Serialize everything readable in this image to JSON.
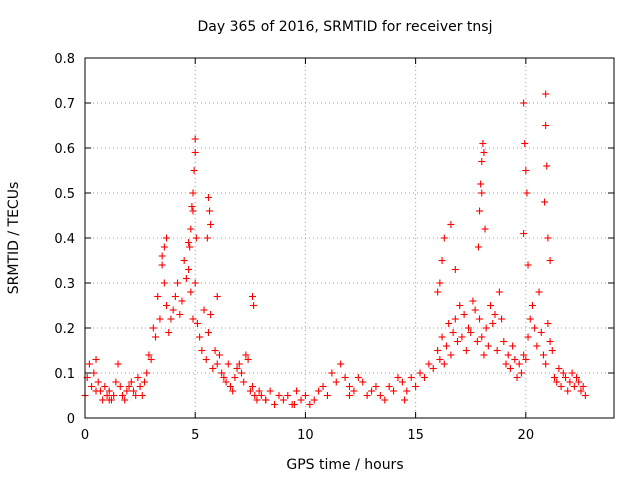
{
  "chart_data": {
    "type": "scatter",
    "title": "Day 365 of 2016, SRMTID for receiver tnsj",
    "xlabel": "GPS time / hours",
    "ylabel": "SRMTID / TECUs",
    "xlim": [
      0,
      24
    ],
    "ylim": [
      0,
      0.8
    ],
    "xticks": [
      0,
      5,
      10,
      15,
      20
    ],
    "yticks": [
      0,
      0.1,
      0.2,
      0.3,
      0.4,
      0.5,
      0.6,
      0.7,
      0.8
    ],
    "xtick_labels": [
      "0",
      "5",
      "10",
      "15",
      "20"
    ],
    "ytick_labels": [
      "0",
      "0.1",
      "0.2",
      "0.3",
      "0.4",
      "0.5",
      "0.6",
      "0.7",
      "0.8"
    ],
    "grid": true,
    "marker": "+",
    "color": "#ff0000",
    "series": [
      {
        "name": "SRMTID",
        "x": [
          0.0,
          0.1,
          0.2,
          0.3,
          0.4,
          0.5,
          0.6,
          0.7,
          0.8,
          0.9,
          1.0,
          1.1,
          1.2,
          1.3,
          1.4,
          1.5,
          1.6,
          1.7,
          1.8,
          1.9,
          2.0,
          2.1,
          2.2,
          2.3,
          2.4,
          2.5,
          2.6,
          2.7,
          2.8,
          2.9,
          3.0,
          3.1,
          3.2,
          3.3,
          3.4,
          3.5,
          3.6,
          3.7,
          3.8,
          3.9,
          4.0,
          4.1,
          4.2,
          4.3,
          4.4,
          4.5,
          4.6,
          4.7,
          4.8,
          4.9,
          5.0,
          5.1,
          5.2,
          5.3,
          5.4,
          5.5,
          5.6,
          5.7,
          5.8,
          5.9,
          6.0,
          6.1,
          6.2,
          6.3,
          6.4,
          6.5,
          6.6,
          6.7,
          6.8,
          6.9,
          7.0,
          7.1,
          7.2,
          7.3,
          7.4,
          7.5,
          7.6,
          7.7,
          7.8,
          7.9,
          8.0,
          8.2,
          8.4,
          8.6,
          8.8,
          9.0,
          9.2,
          9.4,
          9.6,
          9.8,
          10.0,
          10.2,
          10.4,
          10.6,
          10.8,
          11.0,
          11.2,
          11.4,
          11.6,
          11.8,
          12.0,
          12.2,
          12.4,
          12.6,
          12.8,
          13.0,
          13.2,
          13.4,
          13.6,
          13.8,
          14.0,
          14.2,
          14.4,
          14.6,
          14.8,
          15.0,
          15.2,
          15.4,
          15.6,
          15.8,
          16.0,
          16.1,
          16.2,
          16.3,
          16.4,
          16.5,
          16.6,
          16.7,
          16.8,
          16.9,
          17.0,
          17.1,
          17.2,
          17.3,
          17.4,
          17.5,
          17.6,
          17.7,
          17.8,
          17.9,
          18.0,
          18.1,
          18.2,
          18.3,
          18.4,
          18.5,
          18.6,
          18.7,
          18.8,
          18.9,
          19.0,
          19.1,
          19.2,
          19.3,
          19.4,
          19.5,
          19.6,
          19.7,
          19.8,
          19.9,
          20.0,
          20.1,
          20.2,
          20.3,
          20.4,
          20.5,
          20.6,
          20.7,
          20.8,
          20.9,
          21.0,
          21.1,
          21.2,
          21.3,
          21.4,
          21.5,
          21.6,
          21.7,
          21.8,
          21.9,
          22.0,
          22.1,
          22.2,
          22.3,
          22.4,
          22.5,
          22.6,
          22.7,
          4.8,
          4.85,
          4.9,
          4.95,
          5.0,
          5.0,
          5.05,
          4.9,
          4.75,
          4.7,
          5.6,
          5.65,
          5.7,
          5.55,
          3.5,
          3.6,
          3.7,
          6.0,
          7.6,
          7.65,
          16.0,
          16.1,
          16.2,
          16.3,
          16.6,
          16.8,
          17.9,
          17.95,
          18.0,
          18.05,
          18.1,
          18.0,
          18.15,
          17.85,
          19.9,
          19.95,
          20.0,
          20.05,
          19.9,
          20.1,
          20.9,
          20.9,
          20.95,
          20.85,
          21.0,
          21.1,
          1.1,
          0.5,
          8.2,
          9.5,
          12.0,
          14.5
        ],
        "y": [
          0.05,
          0.09,
          0.12,
          0.07,
          0.1,
          0.13,
          0.08,
          0.06,
          0.04,
          0.07,
          0.05,
          0.06,
          0.04,
          0.05,
          0.08,
          0.12,
          0.07,
          0.05,
          0.04,
          0.06,
          0.07,
          0.08,
          0.06,
          0.05,
          0.09,
          0.07,
          0.05,
          0.08,
          0.1,
          0.14,
          0.13,
          0.2,
          0.18,
          0.27,
          0.22,
          0.34,
          0.3,
          0.25,
          0.19,
          0.22,
          0.24,
          0.27,
          0.3,
          0.23,
          0.26,
          0.35,
          0.31,
          0.39,
          0.28,
          0.22,
          0.3,
          0.21,
          0.18,
          0.15,
          0.24,
          0.13,
          0.19,
          0.23,
          0.11,
          0.15,
          0.12,
          0.14,
          0.1,
          0.09,
          0.08,
          0.12,
          0.07,
          0.06,
          0.09,
          0.11,
          0.12,
          0.1,
          0.08,
          0.14,
          0.13,
          0.06,
          0.07,
          0.05,
          0.04,
          0.06,
          0.05,
          0.04,
          0.06,
          0.03,
          0.05,
          0.04,
          0.05,
          0.03,
          0.06,
          0.04,
          0.05,
          0.03,
          0.04,
          0.06,
          0.07,
          0.05,
          0.1,
          0.08,
          0.12,
          0.09,
          0.07,
          0.06,
          0.09,
          0.08,
          0.05,
          0.06,
          0.07,
          0.05,
          0.04,
          0.07,
          0.06,
          0.09,
          0.08,
          0.06,
          0.09,
          0.07,
          0.1,
          0.09,
          0.12,
          0.11,
          0.15,
          0.13,
          0.18,
          0.12,
          0.16,
          0.21,
          0.14,
          0.19,
          0.22,
          0.17,
          0.25,
          0.18,
          0.23,
          0.15,
          0.2,
          0.19,
          0.26,
          0.24,
          0.17,
          0.22,
          0.18,
          0.14,
          0.2,
          0.16,
          0.25,
          0.21,
          0.23,
          0.15,
          0.28,
          0.22,
          0.17,
          0.12,
          0.14,
          0.11,
          0.16,
          0.13,
          0.09,
          0.12,
          0.1,
          0.14,
          0.13,
          0.18,
          0.22,
          0.25,
          0.2,
          0.16,
          0.28,
          0.19,
          0.14,
          0.12,
          0.21,
          0.17,
          0.15,
          0.09,
          0.08,
          0.11,
          0.07,
          0.1,
          0.09,
          0.06,
          0.08,
          0.1,
          0.07,
          0.09,
          0.08,
          0.06,
          0.07,
          0.05,
          0.42,
          0.47,
          0.5,
          0.55,
          0.59,
          0.62,
          0.4,
          0.46,
          0.38,
          0.33,
          0.49,
          0.46,
          0.43,
          0.4,
          0.36,
          0.38,
          0.4,
          0.27,
          0.27,
          0.25,
          0.28,
          0.3,
          0.35,
          0.4,
          0.43,
          0.33,
          0.46,
          0.52,
          0.57,
          0.61,
          0.59,
          0.5,
          0.42,
          0.38,
          0.7,
          0.61,
          0.55,
          0.5,
          0.41,
          0.34,
          0.72,
          0.65,
          0.56,
          0.48,
          0.4,
          0.35,
          0.04,
          0.06,
          0.04,
          0.03,
          0.05,
          0.04
        ]
      }
    ]
  }
}
